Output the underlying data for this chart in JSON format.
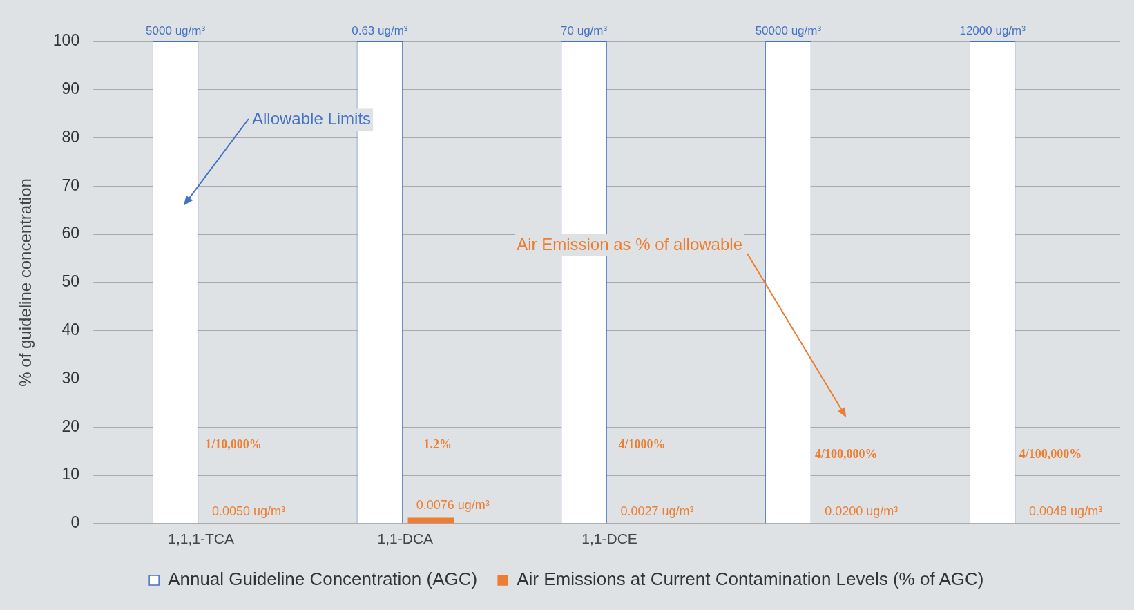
{
  "chart_data": {
    "type": "bar",
    "ylabel": "% of guideline concentration",
    "categories": [
      "1,1,1-TCA",
      "1,1-DCA",
      "1,1-DCE",
      null,
      null
    ],
    "series": [
      {
        "name": "Annual Guideline Concentration (AGC)",
        "color": "#ffffff",
        "values": [
          100,
          100,
          100,
          100,
          100
        ]
      },
      {
        "name": "Air Emissions at Current Contamination Levels (% of AGC)",
        "color": "#ed7d31",
        "values": [
          0,
          1.2,
          0,
          0,
          0
        ]
      }
    ],
    "ylim": [
      0,
      100
    ],
    "yticks": [
      0,
      10,
      20,
      30,
      40,
      50,
      60,
      70,
      80,
      90,
      100
    ],
    "grid": "y",
    "legend": "bottom",
    "annotations": [
      "Allowable Limits",
      "Air Emission as % of allowable",
      "5000 ug/m³",
      "0.63 ug/m³",
      "70 ug/m³",
      "50000 ug/m³",
      "12000 ug/m³",
      "1/10,000%",
      "1.2%",
      "4/1000%",
      "4/100,000%",
      "4/100,000%",
      "0.0050 ug/m³",
      "0.0076 ug/m³",
      "0.0027 ug/m³",
      "0.0200 ug/m³",
      "0.0048 ug/m³"
    ]
  }
}
